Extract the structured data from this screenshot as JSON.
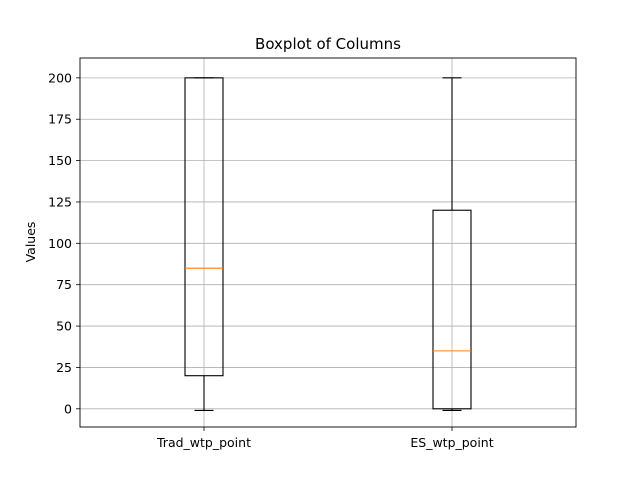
{
  "chart_data": {
    "type": "boxplot",
    "title": "Boxplot of Columns",
    "xlabel": "",
    "ylabel": "Values",
    "ylim": [
      -11,
      212
    ],
    "y_ticks": [
      0,
      25,
      50,
      75,
      100,
      125,
      150,
      175,
      200
    ],
    "grid": true,
    "categories": [
      "Trad_wtp_point",
      "ES_wtp_point"
    ],
    "boxes": [
      {
        "name": "Trad_wtp_point",
        "whisker_low": -1,
        "q1": 20,
        "median": 85,
        "q3": 200,
        "whisker_high": 200
      },
      {
        "name": "ES_wtp_point",
        "whisker_low": -1,
        "q1": 0,
        "median": 35,
        "q3": 120,
        "whisker_high": 200
      }
    ],
    "colors": {
      "box": "#000000",
      "median": "#ff7f0e",
      "grid": "#b0b0b0",
      "background": "#ffffff"
    }
  }
}
